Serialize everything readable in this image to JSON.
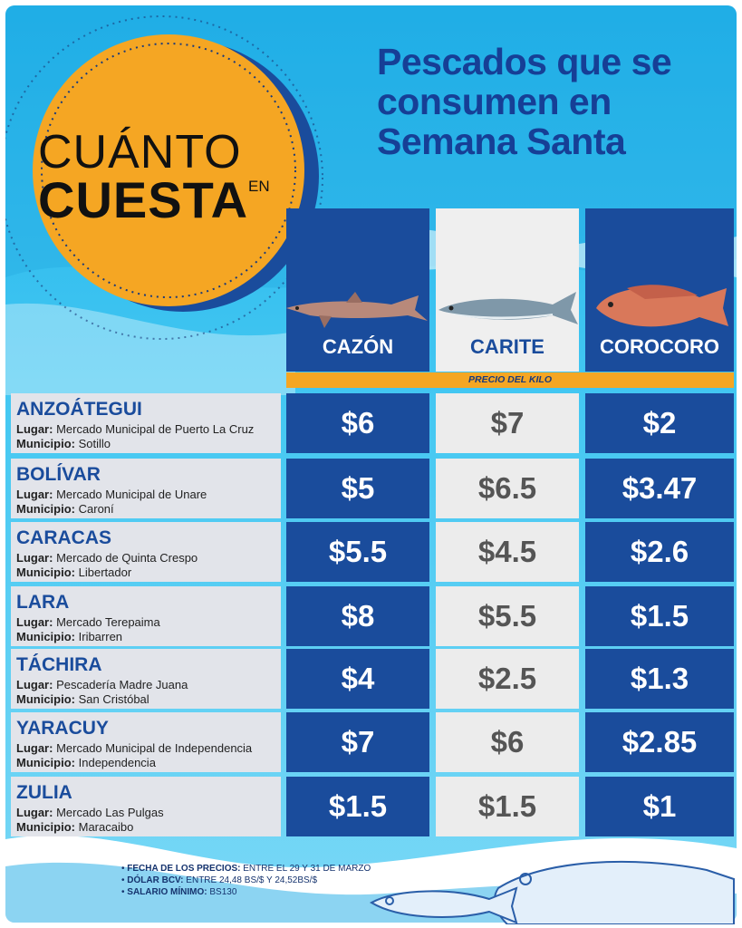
{
  "badge": {
    "line1": "CUÁNTO",
    "line2": "CUESTA",
    "small": "EN"
  },
  "title": "Pescados que se consumen en Semana Santa",
  "columns": [
    {
      "name": "CAZÓN"
    },
    {
      "name": "CARITE"
    },
    {
      "name": "COROCORO"
    }
  ],
  "price_label": "PRECIO DEL KILO",
  "rows": [
    {
      "state": "ANZOÁTEGUI",
      "lugar_label": "Lugar:",
      "lugar": "Mercado Municipal de Puerto La Cruz",
      "municipio_label": "Municipio:",
      "municipio": "Sotillo",
      "prices": [
        "$6",
        "$7",
        "$2"
      ]
    },
    {
      "state": "BOLÍVAR",
      "lugar_label": "Lugar:",
      "lugar": "Mercado Municipal de Unare",
      "municipio_label": "Municipio:",
      "municipio": "Caroní",
      "prices": [
        "$5",
        "$6.5",
        "$3.47"
      ]
    },
    {
      "state": "CARACAS",
      "lugar_label": "Lugar:",
      "lugar": "Mercado de Quinta Crespo",
      "municipio_label": "Municipio:",
      "municipio": "Libertador",
      "prices": [
        "$5.5",
        "$4.5",
        "$2.6"
      ]
    },
    {
      "state": "LARA",
      "lugar_label": "Lugar:",
      "lugar": "Mercado Terepaima",
      "municipio_label": "Municipio:",
      "municipio": "Iribarren",
      "prices": [
        "$8",
        "$5.5",
        "$1.5"
      ]
    },
    {
      "state": "TÁCHIRA",
      "lugar_label": "Lugar:",
      "lugar": "Pescadería Madre Juana",
      "municipio_label": "Municipio:",
      "municipio": "San Cristóbal",
      "prices": [
        "$4",
        "$2.5",
        "$1.3"
      ]
    },
    {
      "state": "YARACUY",
      "lugar_label": "Lugar:",
      "lugar": "Mercado Municipal de Independencia",
      "municipio_label": "Municipio:",
      "municipio": "Independencia",
      "prices": [
        "$7",
        "$6",
        "$2.85"
      ]
    },
    {
      "state": "ZULIA",
      "lugar_label": "Lugar:",
      "lugar": "Mercado Las Pulgas",
      "municipio_label": "Municipio:",
      "municipio": "Maracaibo",
      "prices": [
        "$1.5",
        "$1.5",
        "$1"
      ]
    }
  ],
  "footer": {
    "fecha_label": "FECHA DE LOS PRECIOS:",
    "fecha": "ENTRE EL 29 Y 31 DE MARZO",
    "dolar_label": "DÓLAR BCV:",
    "dolar": "ENTRE 24,48 BS/$ Y 24,52BS/$",
    "salario_label": "SALARIO MÍNIMO:",
    "salario": "BS130"
  },
  "colors": {
    "blue": "#1a4c9c",
    "orange": "#f5a623",
    "sky": "#1fb2ea"
  }
}
